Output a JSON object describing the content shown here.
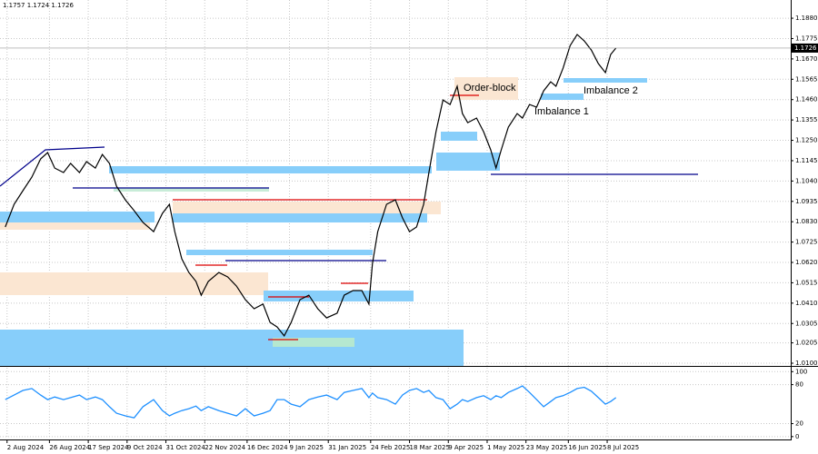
{
  "chart_data": [
    {
      "type": "line",
      "info": "1.1757 1.1724 1.1726",
      "color": "#000000",
      "grid": true,
      "annotations": [
        "Order-block",
        "Imbalance 2",
        "Imbalance 1"
      ],
      "last_price": 1.1726,
      "xlim": [
        "2024-07-29",
        "2025-10-20"
      ],
      "xticks": [
        {
          "value": "2024-08-02",
          "label": "2 Aug 2024"
        },
        {
          "value": "2024-08-26",
          "label": "26 Aug 2024"
        },
        {
          "value": "2024-09-17",
          "label": "17 Sep 2024"
        },
        {
          "value": "2024-10-09",
          "label": "9 Oct 2024"
        },
        {
          "value": "2024-10-31",
          "label": "31 Oct 2024"
        },
        {
          "value": "2024-11-22",
          "label": "22 Nov 2024"
        },
        {
          "value": "2024-12-16",
          "label": "16 Dec 2024"
        },
        {
          "value": "2025-01-09",
          "label": "9 Jan 2025"
        },
        {
          "value": "2025-01-31",
          "label": "31 Jan 2025"
        },
        {
          "value": "2025-02-24",
          "label": "24 Feb 2025"
        },
        {
          "value": "2025-03-18",
          "label": "18 Mar 2025"
        },
        {
          "value": "2025-04-09",
          "label": "9 Apr 2025"
        },
        {
          "value": "2025-05-01",
          "label": "1 May 2025"
        },
        {
          "value": "2025-05-23",
          "label": "23 May 2025"
        },
        {
          "value": "2025-06-16",
          "label": "16 Jun 2025"
        },
        {
          "value": "2025-07-08",
          "label": "8 Jul 2025"
        }
      ],
      "ylim": [
        1.0086,
        1.1974
      ],
      "yticks": [
        {
          "value": 1.188,
          "label": "1.1880"
        },
        1.1775,
        {
          "value": 1.167,
          "label": "1.1670"
        },
        1.1565,
        {
          "value": 1.146,
          "label": "1.1460"
        },
        1.1355,
        {
          "value": 1.125,
          "label": "1.1250"
        },
        1.1145,
        {
          "value": 1.104,
          "label": "1.1040"
        },
        1.0935,
        {
          "value": 1.083,
          "label": "1.0830"
        },
        1.0725,
        {
          "value": 1.062,
          "label": "1.0620"
        },
        1.0515,
        {
          "value": 1.041,
          "label": "1.0410"
        },
        1.0305,
        1.0205,
        {
          "value": 1.01,
          "label": "1.0100"
        }
      ],
      "x": [
        "2024-08-01",
        "2024-08-06",
        "2024-08-11",
        "2024-08-16",
        "2024-08-21",
        "2024-08-25",
        "2024-08-29",
        "2024-09-03",
        "2024-09-07",
        "2024-09-12",
        "2024-09-16",
        "2024-09-21",
        "2024-09-25",
        "2024-09-29",
        "2024-10-03",
        "2024-10-08",
        "2024-10-13",
        "2024-10-18",
        "2024-10-24",
        "2024-10-29",
        "2024-11-02",
        "2024-11-05",
        "2024-11-09",
        "2024-11-13",
        "2024-11-17",
        "2024-11-20",
        "2024-11-24",
        "2024-11-30",
        "2024-12-05",
        "2024-12-10",
        "2024-12-15",
        "2024-12-20",
        "2024-12-25",
        "2024-12-29",
        "2025-01-02",
        "2025-01-06",
        "2025-01-10",
        "2025-01-15",
        "2025-01-20",
        "2025-01-25",
        "2025-01-30",
        "2025-02-05",
        "2025-02-09",
        "2025-02-14",
        "2025-02-19",
        "2025-02-23",
        "2025-02-25",
        "2025-02-28",
        "2025-03-05",
        "2025-03-10",
        "2025-03-14",
        "2025-03-18",
        "2025-03-22",
        "2025-03-26",
        "2025-03-29",
        "2025-04-02",
        "2025-04-06",
        "2025-04-10",
        "2025-04-14",
        "2025-04-17",
        "2025-04-20",
        "2025-04-25",
        "2025-04-29",
        "2025-05-03",
        "2025-05-06",
        "2025-05-09",
        "2025-05-13",
        "2025-05-18",
        "2025-05-21",
        "2025-05-25",
        "2025-05-29",
        "2025-06-02",
        "2025-06-06",
        "2025-06-09",
        "2025-06-13",
        "2025-06-17",
        "2025-06-21",
        "2025-06-25",
        "2025-06-29",
        "2025-07-03",
        "2025-07-07",
        "2025-07-10",
        "2025-07-13"
      ],
      "values": [
        1.0803,
        1.092,
        1.099,
        1.106,
        1.1154,
        1.1187,
        1.1107,
        1.1084,
        1.1131,
        1.1084,
        1.114,
        1.1107,
        1.1177,
        1.1131,
        1.1013,
        1.0943,
        1.0887,
        1.0826,
        1.0779,
        1.0873,
        1.092,
        1.0779,
        1.0639,
        1.0568,
        1.0522,
        1.0451,
        1.0522,
        1.0568,
        1.0545,
        1.0498,
        1.0428,
        1.0381,
        1.0405,
        1.0311,
        1.0287,
        1.0241,
        1.0311,
        1.0428,
        1.0451,
        1.0381,
        1.0334,
        1.0358,
        1.0451,
        1.0475,
        1.0475,
        1.0405,
        1.0615,
        1.0779,
        1.092,
        1.0943,
        1.085,
        1.0779,
        1.0803,
        1.092,
        1.1084,
        1.1294,
        1.1458,
        1.1435,
        1.1529,
        1.1388,
        1.1341,
        1.1365,
        1.1294,
        1.1201,
        1.1107,
        1.1201,
        1.1318,
        1.1388,
        1.1365,
        1.1435,
        1.1421,
        1.1505,
        1.1552,
        1.1529,
        1.1622,
        1.1739,
        1.1796,
        1.1763,
        1.1716,
        1.1646,
        1.1599,
        1.1693,
        1.1726
      ]
    },
    {
      "type": "line",
      "color": "#1e90ff",
      "ylim": [
        -3,
        106
      ],
      "yticks": [
        100,
        80,
        20,
        0
      ],
      "x": [
        "2024-08-01",
        "2024-08-06",
        "2024-08-11",
        "2024-08-16",
        "2024-08-21",
        "2024-08-25",
        "2024-08-29",
        "2024-09-03",
        "2024-09-07",
        "2024-09-12",
        "2024-09-16",
        "2024-09-21",
        "2024-09-25",
        "2024-09-29",
        "2024-10-03",
        "2024-10-08",
        "2024-10-13",
        "2024-10-18",
        "2024-10-24",
        "2024-10-29",
        "2024-11-02",
        "2024-11-05",
        "2024-11-09",
        "2024-11-13",
        "2024-11-17",
        "2024-11-20",
        "2024-11-24",
        "2024-11-30",
        "2024-12-05",
        "2024-12-10",
        "2024-12-15",
        "2024-12-20",
        "2024-12-25",
        "2024-12-29",
        "2025-01-02",
        "2025-01-06",
        "2025-01-10",
        "2025-01-15",
        "2025-01-20",
        "2025-01-25",
        "2025-01-30",
        "2025-02-05",
        "2025-02-09",
        "2025-02-14",
        "2025-02-19",
        "2025-02-23",
        "2025-02-25",
        "2025-02-28",
        "2025-03-05",
        "2025-03-10",
        "2025-03-14",
        "2025-03-18",
        "2025-03-22",
        "2025-03-26",
        "2025-03-29",
        "2025-04-02",
        "2025-04-06",
        "2025-04-10",
        "2025-04-14",
        "2025-04-17",
        "2025-04-20",
        "2025-04-25",
        "2025-04-29",
        "2025-05-03",
        "2025-05-06",
        "2025-05-09",
        "2025-05-13",
        "2025-05-18",
        "2025-05-21",
        "2025-05-25",
        "2025-05-29",
        "2025-06-02",
        "2025-06-06",
        "2025-06-09",
        "2025-06-13",
        "2025-06-17",
        "2025-06-21",
        "2025-06-25",
        "2025-06-29",
        "2025-07-03",
        "2025-07-07",
        "2025-07-10",
        "2025-07-13"
      ],
      "values": [
        57,
        64,
        71,
        74,
        64,
        57,
        61,
        57,
        60,
        64,
        57,
        61,
        57,
        46,
        36,
        32,
        29,
        46,
        57,
        40,
        32,
        36,
        40,
        43,
        47,
        40,
        46,
        40,
        36,
        32,
        43,
        32,
        36,
        40,
        57,
        57,
        50,
        46,
        57,
        61,
        64,
        57,
        68,
        71,
        74,
        60,
        67,
        60,
        57,
        50,
        64,
        71,
        74,
        68,
        71,
        60,
        57,
        43,
        50,
        57,
        54,
        60,
        63,
        57,
        63,
        60,
        68,
        74,
        78,
        68,
        57,
        46,
        54,
        60,
        63,
        68,
        74,
        76,
        70,
        60,
        50,
        54,
        60
      ]
    }
  ]
}
